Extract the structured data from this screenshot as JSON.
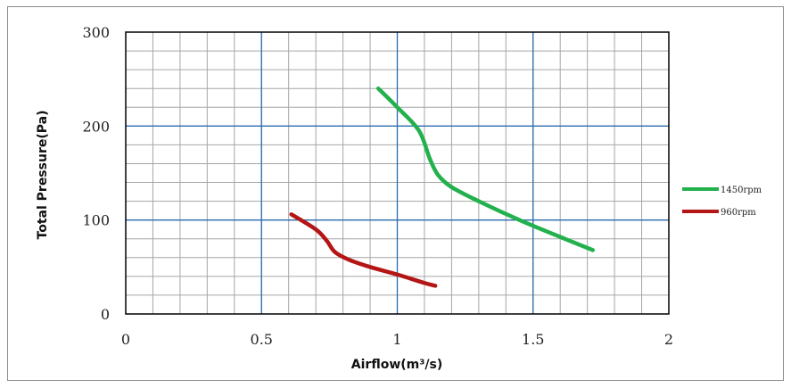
{
  "chart_data": {
    "type": "line",
    "title": "",
    "xlabel": "Airflow(m³/s)",
    "ylabel": "Total Pressure(Pa)",
    "xlim": [
      0,
      2
    ],
    "ylim": [
      0,
      300
    ],
    "x_ticks": [
      "0",
      "0.5",
      "1",
      "1.5",
      "2"
    ],
    "y_ticks": [
      "0",
      "100",
      "200",
      "300"
    ],
    "grid": true,
    "legend_position": "right",
    "series": [
      {
        "name": "1450rpm",
        "color": "#22b14c",
        "x": [
          0.93,
          1.0,
          1.08,
          1.12,
          1.15,
          1.2,
          1.3,
          1.45,
          1.6,
          1.72
        ],
        "y": [
          240,
          220,
          195,
          165,
          148,
          135,
          120,
          100,
          82,
          68
        ]
      },
      {
        "name": "960rpm",
        "color": "#b41515",
        "x": [
          0.61,
          0.7,
          0.74,
          0.77,
          0.82,
          0.9,
          1.0,
          1.1,
          1.14
        ],
        "y": [
          106,
          90,
          78,
          66,
          58,
          50,
          42,
          33,
          30
        ]
      }
    ]
  }
}
